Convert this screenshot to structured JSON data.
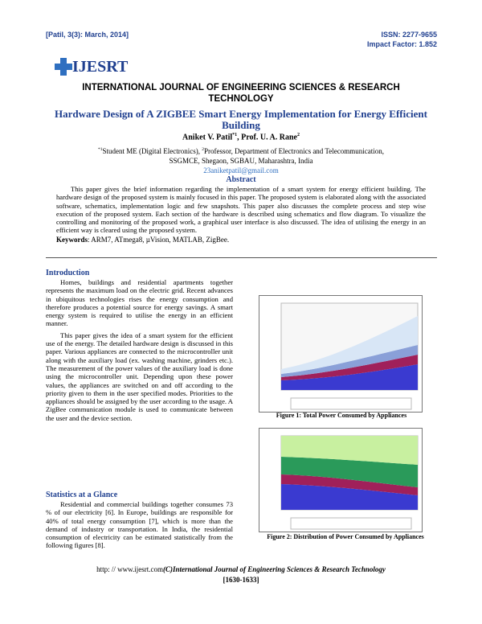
{
  "header": {
    "citation": "[Patil, 3(3): March, 2014]",
    "issn": "ISSN: 2277-9655",
    "impact": "Impact Factor: 1.852",
    "logo": "IJESRT",
    "journal": "INTERNATIONAL JOURNAL OF ENGINEERING SCIENCES & RESEARCH TECHNOLOGY"
  },
  "paper": {
    "title": "Hardware Design of A ZIGBEE Smart Energy Implementation for Energy Efficient Building",
    "authors": [
      {
        "name": "Aniket V. Patil",
        "sup": "*1"
      },
      {
        "name": "Prof. U. A. Rane",
        "sup": "2"
      }
    ],
    "affiliation": [
      {
        "sup": "*1",
        "text": "Student ME (Digital Electronics), "
      },
      {
        "sup": "2",
        "text": "Professor, Department of Electronics and Telecommunication,"
      }
    ],
    "affiliation_line2": "SSGMCE, Shegaon, SGBAU, Maharashtra, India",
    "email": "23aniketpatil@gmail.com",
    "abstract_heading": "Abstract",
    "abstract": "This paper gives the brief information regarding the implementation of a smart system for energy efficient building. The hardware design of the proposed system is mainly focused in this paper. The proposed system is elaborated along with the associated software, schematics, implementation logic and few snapshots. This paper also discusses the complete process and step wise execution of the proposed system. Each section of the hardware is described using schematics and flow diagram. To visualize the controlling and monitoring of the proposed work, a graphical user interface is also discussed. The idea of utilising the energy in an efficient way is cleared using the proposed system.",
    "keywords_label": "Keywords",
    "keywords": ": ARM7, ATmega8, µVision, MATLAB, ZigBee."
  },
  "sections": [
    {
      "heading": "Introduction",
      "paragraphs": [
        "Homes, buildings and residential apartments together represents the maximum load on the electric grid. Recent advances in ubiquitous technologies rises the energy consumption and therefore produces a potential source for energy savings. A smart energy system is required to utilise the energy in an efficient manner.",
        "This paper gives the idea of a smart system for the efficient use of the energy. The detailed hardware design is discussed in this paper. Various appliances are connected to the microcontroller unit along with the auxiliary load (ex. washing machine, grinders etc.). The measurement of the power values of the auxiliary load is done using the microcontroller unit. Depending upon these power values, the appliances are switched on and off according to the priority given to them in the user specified modes. Priorities to the appliances should be assigned by the user according to the usage. A ZigBee communication module is used to communicate between the user and the device section."
      ]
    },
    {
      "heading": "Statistics at a Glance",
      "paragraphs": [
        "Residential and commercial buildings together consumes 73 % of our electricity [6]. In Europe, buildings are responsible for 40% of total energy consumption [7], which is more than the demand of industry or transportation. In India, the residential consumption of electricity can be estimated statistically from the following figures [8]."
      ]
    }
  ],
  "figures": [
    {
      "caption": "Figure 1: Total Power Consumed by Appliances"
    },
    {
      "caption": "Figure 2: Distribution of Power Consumed by Appliances"
    }
  ],
  "footer": {
    "url": "http: // www.ijesrt.com",
    "copyright": "(C)International Journal of Engineering Sciences & Research Technology",
    "pages": "[1630-1633]"
  }
}
